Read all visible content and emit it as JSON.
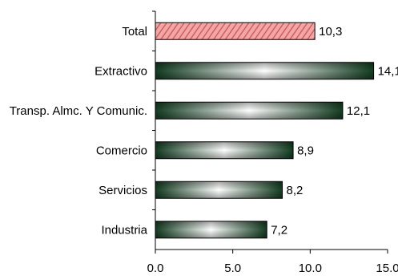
{
  "chart_data": {
    "type": "bar",
    "orientation": "horizontal",
    "categories": [
      "Total",
      "Extractivo",
      "Transp. Almc. Y Comunic.",
      "Comercio",
      "Servicios",
      "Industria"
    ],
    "values": [
      10.3,
      14.1,
      12.1,
      8.9,
      8.2,
      7.2
    ],
    "value_labels": [
      "10,3",
      "14,1",
      "12,1",
      "8,9",
      "8,2",
      "7,2"
    ],
    "xlim": [
      0,
      15
    ],
    "x_ticks": [
      0,
      5,
      10,
      15
    ],
    "x_tick_labels": [
      "0.0",
      "5.0",
      "10.0",
      "15.0"
    ],
    "grid": false,
    "legend": "none",
    "colors": {
      "highlight_bar": "#d06060",
      "highlight_bar_light": "#f2a6a6",
      "default_bar_dark": "#123d20",
      "default_bar_light": "#ffffff"
    },
    "highlight_index": 0
  }
}
